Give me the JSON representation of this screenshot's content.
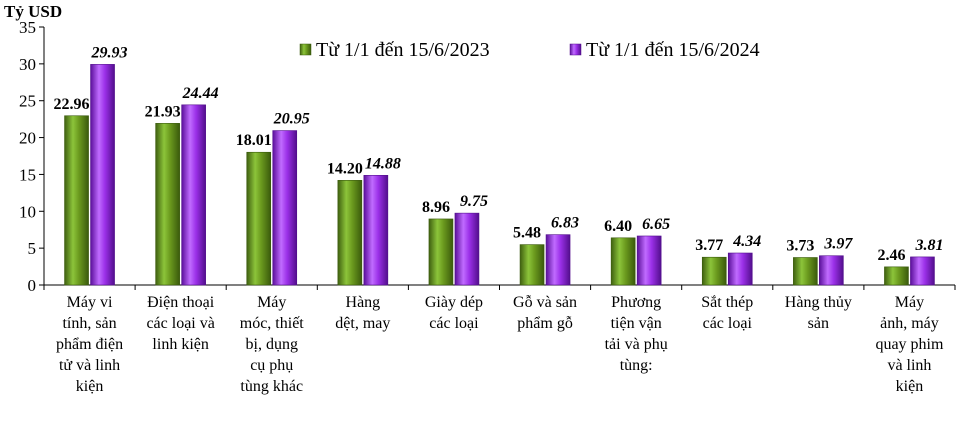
{
  "chart_data": {
    "type": "bar",
    "ylabel": "Tỷ USD",
    "ylim": [
      0,
      35
    ],
    "yticks": [
      0,
      5,
      10,
      15,
      20,
      25,
      30,
      35
    ],
    "grid": false,
    "legend_position": "top-right",
    "categories": [
      [
        "Máy vi",
        "tính, sản",
        "phẩm điện",
        "tử và linh",
        "kiện"
      ],
      [
        "Điện thoại",
        "các loại và",
        "linh kiện"
      ],
      [
        "Máy",
        "móc, thiết",
        "bị, dụng",
        "cụ phụ",
        "tùng khác"
      ],
      [
        "Hàng",
        "dệt, may"
      ],
      [
        "Giày dép",
        "các loại"
      ],
      [
        "Gỗ và sản",
        "phẩm gỗ"
      ],
      [
        "Phương",
        "tiện vận",
        "tải và phụ",
        "tùng:"
      ],
      [
        "Sắt thép",
        "các loại"
      ],
      [
        "Hàng thủy",
        "sản"
      ],
      [
        "Máy",
        "ảnh, máy",
        "quay phim",
        "và linh",
        "kiện"
      ]
    ],
    "series": [
      {
        "name": "Từ 1/1 đến 15/6/2023",
        "color": "#6b9a1e",
        "values": [
          22.96,
          21.93,
          18.01,
          14.2,
          8.96,
          5.48,
          6.4,
          3.77,
          3.73,
          2.46
        ],
        "labels": [
          "22.96",
          "21.93",
          "18.01",
          "14.20",
          "8.96",
          "5.48",
          "6.40",
          "3.77",
          "3.73",
          "2.46"
        ]
      },
      {
        "name": "Từ 1/1 đến 15/6/2024",
        "color": "#9b30e8",
        "values": [
          29.93,
          24.44,
          20.95,
          14.88,
          9.75,
          6.83,
          6.65,
          4.34,
          3.97,
          3.81
        ],
        "labels": [
          "29.93",
          "24.44",
          "20.95",
          "14.88",
          "9.75",
          "6.83",
          "6.65",
          "4.34",
          "3.97",
          "3.81"
        ]
      }
    ]
  }
}
